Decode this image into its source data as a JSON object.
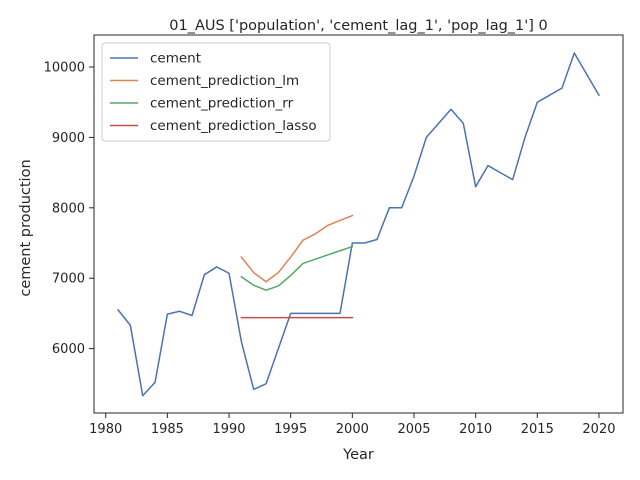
{
  "chart_data": {
    "type": "line",
    "title": "01_AUS ['population', 'cement_lag_1', 'pop_lag_1'] 0",
    "xlabel": "Year",
    "ylabel": "cement production",
    "xlim": [
      1979.05,
      2021.95
    ],
    "ylim": [
      5085,
      10455
    ],
    "xticks": [
      1980,
      1985,
      1990,
      1995,
      2000,
      2005,
      2010,
      2015,
      2020
    ],
    "yticks": [
      6000,
      7000,
      8000,
      9000,
      10000
    ],
    "legend": "top-left",
    "grid": false,
    "series": [
      {
        "name": "cement",
        "color": "#4c72b0",
        "points": [
          [
            1981,
            6550
          ],
          [
            1982,
            6330
          ],
          [
            1983,
            5330
          ],
          [
            1984,
            5520
          ],
          [
            1985,
            6490
          ],
          [
            1986,
            6530
          ],
          [
            1987,
            6470
          ],
          [
            1988,
            7050
          ],
          [
            1989,
            7160
          ],
          [
            1990,
            7070
          ],
          [
            1991,
            6100
          ],
          [
            1992,
            5420
          ],
          [
            1993,
            5500
          ],
          [
            1994,
            6000
          ],
          [
            1995,
            6500
          ],
          [
            1996,
            6500
          ],
          [
            1997,
            6500
          ],
          [
            1998,
            6500
          ],
          [
            1999,
            6500
          ],
          [
            2000,
            7500
          ],
          [
            2001,
            7500
          ],
          [
            2002,
            7550
          ],
          [
            2003,
            8000
          ],
          [
            2004,
            8000
          ],
          [
            2005,
            8450
          ],
          [
            2006,
            9000
          ],
          [
            2007,
            9200
          ],
          [
            2008,
            9400
          ],
          [
            2009,
            9200
          ],
          [
            2010,
            8300
          ],
          [
            2011,
            8600
          ],
          [
            2012,
            8500
          ],
          [
            2013,
            8400
          ],
          [
            2014,
            9000
          ],
          [
            2015,
            9500
          ],
          [
            2016,
            9600
          ],
          [
            2017,
            9700
          ],
          [
            2018,
            10200
          ],
          [
            2019,
            9900
          ],
          [
            2020,
            9600
          ]
        ]
      },
      {
        "name": "cement_prediction_lm",
        "color": "#dd8452",
        "points": [
          [
            1991,
            7300
          ],
          [
            1992,
            7080
          ],
          [
            1993,
            6950
          ],
          [
            1994,
            7080
          ],
          [
            1995,
            7300
          ],
          [
            1996,
            7540
          ],
          [
            1997,
            7630
          ],
          [
            1998,
            7750
          ],
          [
            1999,
            7820
          ],
          [
            2000,
            7890
          ]
        ]
      },
      {
        "name": "cement_prediction_rr",
        "color": "#55a868",
        "points": [
          [
            1991,
            7020
          ],
          [
            1992,
            6900
          ],
          [
            1993,
            6830
          ],
          [
            1994,
            6890
          ],
          [
            1995,
            7040
          ],
          [
            1996,
            7210
          ],
          [
            1997,
            7270
          ],
          [
            1998,
            7330
          ],
          [
            1999,
            7390
          ],
          [
            2000,
            7450
          ]
        ]
      },
      {
        "name": "cement_prediction_lasso",
        "color": "#c44e52",
        "points": [
          [
            1991,
            6440
          ],
          [
            1992,
            6440
          ],
          [
            1993,
            6440
          ],
          [
            1994,
            6440
          ],
          [
            1995,
            6440
          ],
          [
            1996,
            6440
          ],
          [
            1997,
            6440
          ],
          [
            1998,
            6440
          ],
          [
            1999,
            6440
          ],
          [
            2000,
            6440
          ]
        ]
      }
    ]
  }
}
